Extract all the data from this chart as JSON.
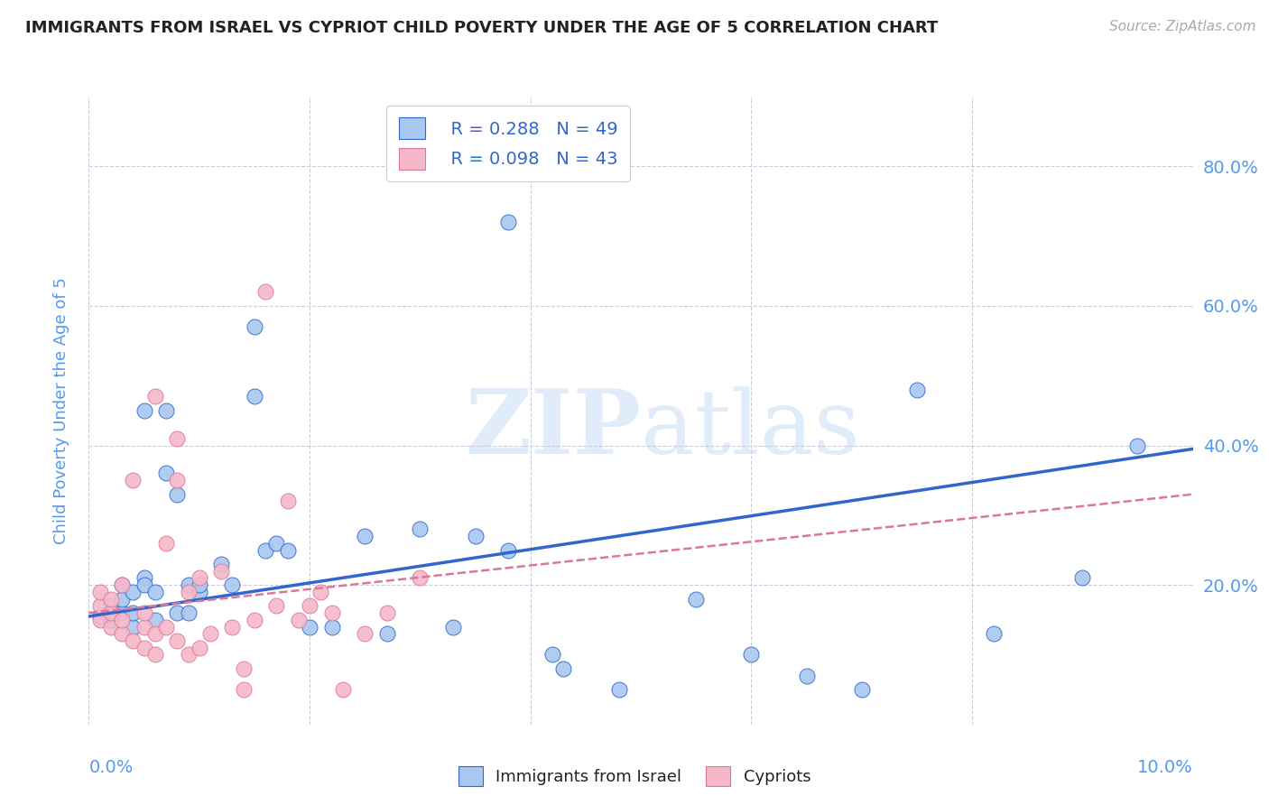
{
  "title": "IMMIGRANTS FROM ISRAEL VS CYPRIOT CHILD POVERTY UNDER THE AGE OF 5 CORRELATION CHART",
  "source": "Source: ZipAtlas.com",
  "ylabel": "Child Poverty Under the Age of 5",
  "ytick_labels": [
    "",
    "20.0%",
    "40.0%",
    "60.0%",
    "80.0%"
  ],
  "ytick_values": [
    0,
    0.2,
    0.4,
    0.6,
    0.8
  ],
  "xlim": [
    0.0,
    0.1
  ],
  "ylim": [
    0.0,
    0.9
  ],
  "legend_blue_R": "R = 0.288",
  "legend_blue_N": "N = 49",
  "legend_pink_R": "R = 0.098",
  "legend_pink_N": "N = 43",
  "legend_label_blue": "Immigrants from Israel",
  "legend_label_pink": "Cypriots",
  "blue_scatter_x": [
    0.001,
    0.002,
    0.002,
    0.003,
    0.003,
    0.003,
    0.004,
    0.004,
    0.004,
    0.005,
    0.005,
    0.005,
    0.006,
    0.006,
    0.007,
    0.007,
    0.008,
    0.008,
    0.009,
    0.009,
    0.01,
    0.01,
    0.012,
    0.013,
    0.015,
    0.015,
    0.016,
    0.017,
    0.018,
    0.02,
    0.022,
    0.025,
    0.027,
    0.03,
    0.033,
    0.035,
    0.038,
    0.038,
    0.042,
    0.043,
    0.048,
    0.055,
    0.06,
    0.065,
    0.07,
    0.075,
    0.082,
    0.09,
    0.095
  ],
  "blue_scatter_y": [
    0.155,
    0.15,
    0.17,
    0.16,
    0.18,
    0.2,
    0.14,
    0.16,
    0.19,
    0.21,
    0.2,
    0.45,
    0.15,
    0.19,
    0.45,
    0.36,
    0.33,
    0.16,
    0.2,
    0.16,
    0.19,
    0.2,
    0.23,
    0.2,
    0.47,
    0.57,
    0.25,
    0.26,
    0.25,
    0.14,
    0.14,
    0.27,
    0.13,
    0.28,
    0.14,
    0.27,
    0.25,
    0.72,
    0.1,
    0.08,
    0.05,
    0.18,
    0.1,
    0.07,
    0.05,
    0.48,
    0.13,
    0.21,
    0.4
  ],
  "pink_scatter_x": [
    0.001,
    0.001,
    0.001,
    0.002,
    0.002,
    0.002,
    0.003,
    0.003,
    0.003,
    0.004,
    0.004,
    0.005,
    0.005,
    0.005,
    0.006,
    0.006,
    0.006,
    0.007,
    0.007,
    0.008,
    0.008,
    0.008,
    0.009,
    0.009,
    0.01,
    0.01,
    0.011,
    0.012,
    0.013,
    0.014,
    0.014,
    0.015,
    0.016,
    0.017,
    0.018,
    0.019,
    0.02,
    0.021,
    0.022,
    0.023,
    0.025,
    0.027,
    0.03
  ],
  "pink_scatter_y": [
    0.15,
    0.17,
    0.19,
    0.14,
    0.16,
    0.18,
    0.13,
    0.15,
    0.2,
    0.12,
    0.35,
    0.11,
    0.14,
    0.16,
    0.1,
    0.13,
    0.47,
    0.14,
    0.26,
    0.12,
    0.35,
    0.41,
    0.1,
    0.19,
    0.11,
    0.21,
    0.13,
    0.22,
    0.14,
    0.05,
    0.08,
    0.15,
    0.62,
    0.17,
    0.32,
    0.15,
    0.17,
    0.19,
    0.16,
    0.05,
    0.13,
    0.16,
    0.21
  ],
  "blue_line_x": [
    0.0,
    0.1
  ],
  "blue_line_y": [
    0.155,
    0.395
  ],
  "pink_line_x": [
    0.0,
    0.1
  ],
  "pink_line_y": [
    0.16,
    0.33
  ],
  "blue_color": "#a8c8f0",
  "blue_line_color": "#3366cc",
  "pink_color": "#f5b8c8",
  "pink_line_color": "#dd7799",
  "axis_color": "#5599ee",
  "grid_color": "#ccccdd",
  "title_color": "#222222",
  "source_color": "#aaaaaa",
  "background_color": "#ffffff"
}
